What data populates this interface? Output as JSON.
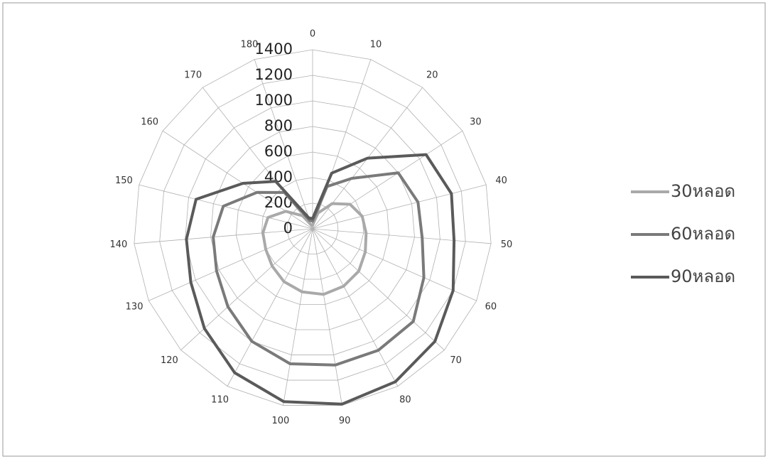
{
  "chart_data": {
    "type": "radar",
    "categories": [
      "0",
      "10",
      "20",
      "30",
      "40",
      "50",
      "60",
      "70",
      "80",
      "90",
      "100",
      "110",
      "120",
      "130",
      "140",
      "150",
      "160",
      "170",
      "180"
    ],
    "ylim": [
      0,
      1400
    ],
    "yticks": [
      0,
      200,
      400,
      600,
      800,
      1000,
      1200,
      1400
    ],
    "grid": true,
    "legend": "right",
    "series": [
      {
        "name": "30หลอด",
        "color": "#a9a9a9",
        "values": [
          30,
          130,
          250,
          350,
          400,
          420,
          450,
          490,
          510,
          520,
          500,
          470,
          430,
          400,
          390,
          360,
          250,
          130,
          30
        ]
      },
      {
        "name": "60หลอด",
        "color": "#7a7a7a",
        "values": [
          60,
          350,
          500,
          800,
          850,
          860,
          950,
          1070,
          1080,
          1080,
          1070,
          1000,
          900,
          820,
          780,
          720,
          520,
          360,
          70
        ]
      },
      {
        "name": "90หลอด",
        "color": "#5a5a5a",
        "values": [
          80,
          460,
          700,
          1060,
          1120,
          1110,
          1200,
          1300,
          1360,
          1390,
          1370,
          1280,
          1150,
          1040,
          990,
          940,
          650,
          470,
          90
        ]
      }
    ]
  }
}
